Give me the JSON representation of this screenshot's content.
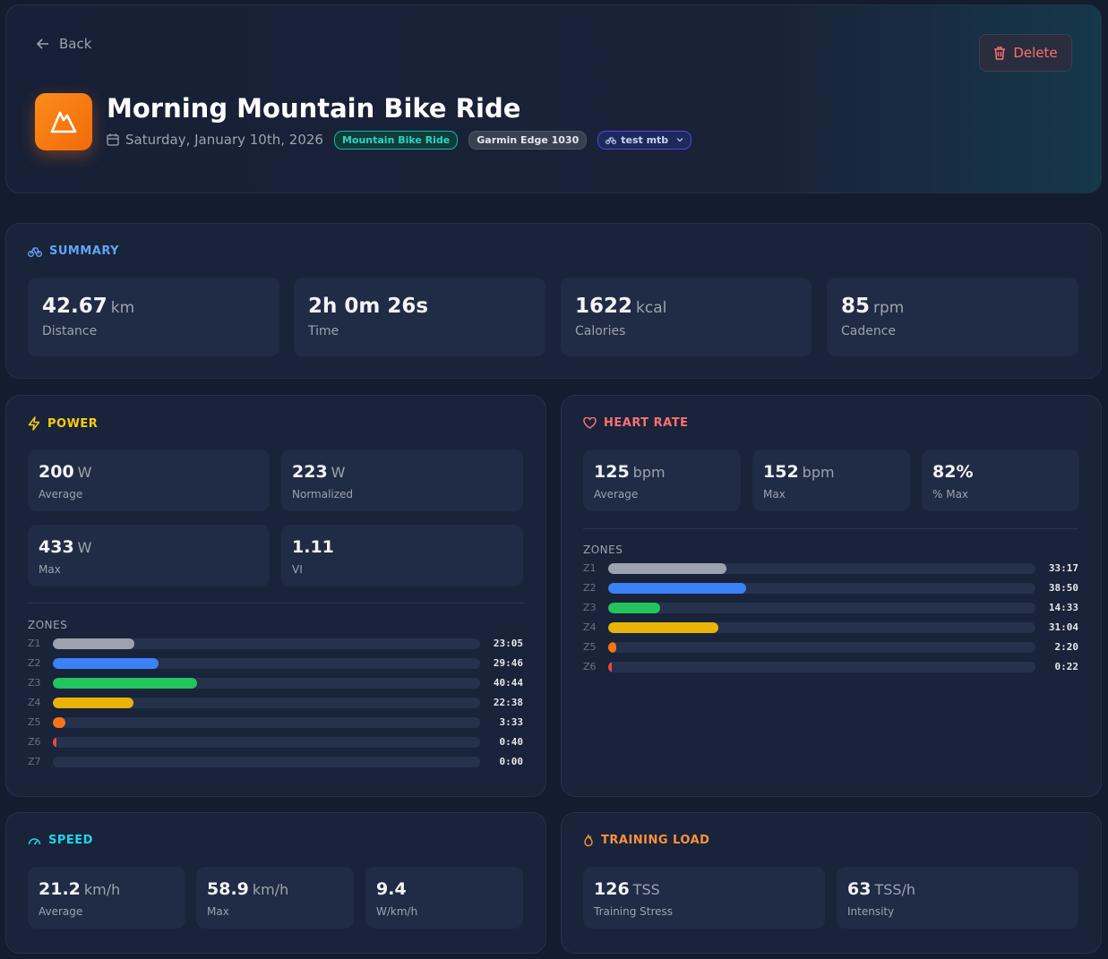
{
  "header": {
    "back": "Back",
    "delete": "Delete",
    "title": "Morning Mountain Bike Ride",
    "date": "Saturday, January 10th, 2026",
    "tags": [
      "Mountain Bike Ride",
      "Garmin Edge 1030",
      "test mtb"
    ]
  },
  "summary": {
    "title": "SUMMARY",
    "stats": [
      {
        "value": 42.67,
        "unit": "km",
        "label": "Distance"
      },
      {
        "value": "2h 0m 26s",
        "label": "Time"
      },
      {
        "value": 1622,
        "unit": "kcal",
        "label": "Calories"
      },
      {
        "value": 85,
        "unit": "rpm",
        "label": "Cadence"
      }
    ]
  },
  "power": {
    "title": "POWER",
    "stats": [
      {
        "value": 200,
        "unit": "W",
        "label": "Average"
      },
      {
        "value": 223,
        "unit": "W",
        "label": "Normalized"
      },
      {
        "value": 433,
        "unit": "W",
        "label": "Max"
      },
      {
        "value": 1.11,
        "label": "VI"
      }
    ],
    "zones_title": "ZONES",
    "zones": [
      {
        "name": "Z1",
        "time": "23:05",
        "color": "#9ca3af"
      },
      {
        "name": "Z2",
        "time": "29:46",
        "color": "#3b82f6"
      },
      {
        "name": "Z3",
        "time": "40:44",
        "color": "#22c55e"
      },
      {
        "name": "Z4",
        "time": "22:38",
        "color": "#eab308"
      },
      {
        "name": "Z5",
        "time": "3:33",
        "color": "#f97316"
      },
      {
        "name": "Z6",
        "time": "0:40",
        "color": "#ef4444"
      },
      {
        "name": "Z7",
        "time": "0:00",
        "color": "#a855f7"
      }
    ]
  },
  "heart_rate": {
    "title": "HEART RATE",
    "stats": [
      {
        "value": 125,
        "unit": "bpm",
        "label": "Average"
      },
      {
        "value": 152,
        "unit": "bpm",
        "label": "Max"
      },
      {
        "value": "82%",
        "label": "% Max"
      }
    ],
    "zones_title": "ZONES",
    "zones": [
      {
        "name": "Z1",
        "time": "33:17",
        "color": "#9ca3af"
      },
      {
        "name": "Z2",
        "time": "38:50",
        "color": "#3b82f6"
      },
      {
        "name": "Z3",
        "time": "14:33",
        "color": "#22c55e"
      },
      {
        "name": "Z4",
        "time": "31:04",
        "color": "#eab308"
      },
      {
        "name": "Z5",
        "time": "2:20",
        "color": "#f97316"
      },
      {
        "name": "Z6",
        "time": "0:22",
        "color": "#ef4444"
      }
    ]
  },
  "speed": {
    "title": "SPEED",
    "stats": [
      {
        "value": 21.2,
        "unit": "km/h",
        "label": "Average"
      },
      {
        "value": 58.9,
        "unit": "km/h",
        "label": "Max"
      },
      {
        "value": 9.4,
        "label": "W/km/h"
      }
    ]
  },
  "training_load": {
    "title": "TRAINING LOAD",
    "stats": [
      {
        "value": 126,
        "unit": "TSS",
        "label": "Training Stress"
      },
      {
        "value": 63,
        "unit": "TSS/h",
        "label": "Intensity"
      }
    ]
  }
}
